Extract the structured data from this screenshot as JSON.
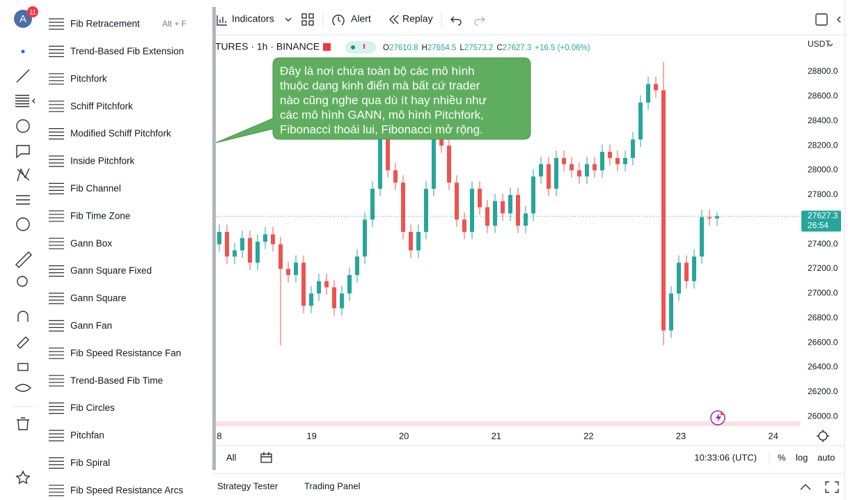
{
  "toolbar": {
    "avatar": "A",
    "badge": "11"
  },
  "topbar": {
    "indicators": "Indicators",
    "alert": "Alert",
    "replay": "Replay"
  },
  "menu": {
    "items": [
      {
        "label": "Fib Retracement",
        "shortcut": "Alt + F"
      },
      {
        "label": "Trend-Based Fib Extension"
      },
      {
        "label": "Pitchfork"
      },
      {
        "label": "Schiff Pitchfork"
      },
      {
        "label": "Modified Schiff Pitchfork"
      },
      {
        "label": "Inside Pitchfork"
      },
      {
        "label": "Fib Channel"
      },
      {
        "label": "Fib Time Zone"
      },
      {
        "label": "Gann Box"
      },
      {
        "label": "Gann Square Fixed"
      },
      {
        "label": "Gann Square"
      },
      {
        "label": "Gann Fan"
      },
      {
        "label": "Fib Speed Resistance Fan"
      },
      {
        "label": "Trend-Based Fib Time"
      },
      {
        "label": "Fib Circles"
      },
      {
        "label": "Pitchfan"
      },
      {
        "label": "Fib Spiral"
      },
      {
        "label": "Fib Speed Resistance Arcs"
      }
    ]
  },
  "symbol": {
    "name": "TURES · 1h · BINANCE",
    "ohlc": [
      {
        "key": "O",
        "value": "27610.8"
      },
      {
        "key": "H",
        "value": "27654.5"
      },
      {
        "key": "L",
        "value": "27573.2"
      },
      {
        "key": "C",
        "value": "27627.3"
      }
    ],
    "change": "+16.5 (+0.06%)",
    "currency": "USDT"
  },
  "tooltip": {
    "lines": [
      "Đây là nơi chứa toàn bộ các mô hình",
      "thuộc dạng kinh điển mà bất cứ trader",
      "nào cũng nghe qua dù ít hay nhiều như",
      "các mô hình GANN, mô hình Pitchfork,",
      "Fibonacci thoái lui, Fibonacci mở rộng."
    ]
  },
  "chart_data": {
    "type": "candlestick",
    "up_color": "#26a69a",
    "down_color": "#ef5350",
    "open": [
      27400,
      27500,
      27300,
      27350,
      27450,
      27250,
      27420,
      27480,
      27400,
      27200,
      27150,
      27250,
      26900,
      27000,
      27100,
      27050,
      26880,
      27000,
      27150,
      27300,
      27600,
      27850,
      28300,
      28000,
      27900,
      27500,
      27350,
      27500,
      27850,
      28300,
      28200,
      27900,
      27600,
      27500,
      27850,
      27700,
      27550,
      27750,
      27650,
      27800,
      27550,
      27650,
      27950,
      28050,
      27850,
      28100,
      28050,
      28000,
      27950,
      28050,
      28000,
      28150,
      28100,
      28050,
      28100,
      28250,
      28550,
      28700,
      28650,
      26700,
      27000,
      27250,
      27100,
      27300,
      27620,
      27610
    ],
    "high": [
      27560,
      27560,
      27410,
      27510,
      27510,
      27480,
      27540,
      27540,
      27460,
      27260,
      27310,
      27310,
      27060,
      27160,
      27160,
      27110,
      27060,
      27210,
      27360,
      27660,
      27910,
      28400,
      28360,
      28060,
      27960,
      27560,
      27560,
      27910,
      28450,
      28360,
      28260,
      27960,
      27660,
      27910,
      27910,
      27760,
      27810,
      27810,
      27860,
      27860,
      27710,
      28010,
      28110,
      28110,
      28160,
      28160,
      28110,
      28060,
      28110,
      28110,
      28210,
      28210,
      28160,
      28160,
      28310,
      28610,
      28760,
      28760,
      28880,
      27060,
      27310,
      27310,
      27360,
      27680,
      27680,
      27660
    ],
    "low": [
      27340,
      27240,
      27240,
      27290,
      27190,
      27190,
      27360,
      27340,
      26580,
      27090,
      27090,
      26840,
      26840,
      26940,
      26990,
      26820,
      26820,
      26940,
      27090,
      27240,
      27540,
      27790,
      27940,
      27840,
      27440,
      27290,
      27290,
      27440,
      27790,
      28140,
      27840,
      27540,
      27440,
      27440,
      27640,
      27490,
      27490,
      27590,
      27590,
      27490,
      27490,
      27590,
      27890,
      27790,
      27790,
      27990,
      27940,
      27890,
      27890,
      27940,
      27940,
      28040,
      27990,
      27990,
      28040,
      28190,
      28490,
      28590,
      26580,
      26640,
      26940,
      27040,
      27040,
      27240,
      27550,
      27550
    ],
    "close": [
      27500,
      27300,
      27350,
      27450,
      27250,
      27420,
      27480,
      27400,
      27200,
      27150,
      27250,
      26900,
      27000,
      27100,
      27050,
      26880,
      27000,
      27150,
      27300,
      27600,
      27850,
      28300,
      28000,
      27900,
      27500,
      27350,
      27500,
      27850,
      28300,
      28200,
      27900,
      27600,
      27500,
      27850,
      27700,
      27550,
      27750,
      27650,
      27800,
      27550,
      27650,
      27950,
      28050,
      27850,
      28100,
      28050,
      28000,
      27950,
      28050,
      28000,
      28150,
      28100,
      28050,
      28100,
      28250,
      28550,
      28700,
      28650,
      26700,
      27000,
      27250,
      27100,
      27300,
      27620,
      27610,
      27627.3
    ],
    "ylim": [
      25900,
      29100
    ],
    "yticks": [
      {
        "value": 28800,
        "label": "28800.0"
      },
      {
        "value": 28600,
        "label": "28600.0"
      },
      {
        "value": 28400,
        "label": "28400.0"
      },
      {
        "value": 28200,
        "label": "28200.0"
      },
      {
        "value": 28000,
        "label": "28000.0"
      },
      {
        "value": 27800,
        "label": "27800.0"
      },
      {
        "value": 27600,
        "label": "27600.0"
      },
      {
        "value": 27400,
        "label": "27400.0"
      },
      {
        "value": 27200,
        "label": "27200.0"
      },
      {
        "value": 27000,
        "label": "27000.0"
      },
      {
        "value": 26800,
        "label": "26800.0"
      },
      {
        "value": 26600,
        "label": "26600.0"
      },
      {
        "value": 26400,
        "label": "26400.0"
      },
      {
        "value": 26200,
        "label": "26200.0"
      },
      {
        "value": 26000,
        "label": "26000.0"
      }
    ],
    "x_labels": [
      "8",
      "19",
      "20",
      "21",
      "22",
      "23",
      "24"
    ],
    "last_price": 27627.3,
    "countdown": "26:54"
  },
  "bottom": {
    "range": "All",
    "time": "10:33:06 (UTC)",
    "percent": "%",
    "log": "log",
    "auto": "auto",
    "tabs": [
      "Strategy Tester",
      "Trading Panel"
    ]
  }
}
